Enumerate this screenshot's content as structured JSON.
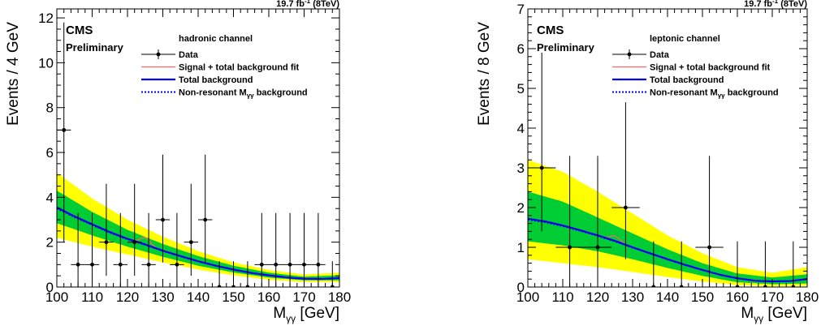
{
  "colors": {
    "band_2sigma": "#ffff00",
    "band_1sigma": "#00cc33",
    "signal_fit": "#ff6666",
    "total_background": "#0000ee",
    "nonresonant_background": "#0000ff",
    "data": "#000000"
  },
  "chart_data": [
    {
      "type": "scatter",
      "experiment": "CMS",
      "status": "Preliminary",
      "lumi_value": "19.7 fb",
      "lumi_exp": "-1",
      "lumi_energy": " (8TeV)",
      "channel": "hadronic channel",
      "ylabel": "Events / 4 GeV",
      "xlabel_main": "M",
      "xlabel_sub": "γγ",
      "xlabel_unit": " [GeV]",
      "xlim": [
        100,
        180
      ],
      "ylim": [
        0,
        12.4
      ],
      "xticks": [
        100,
        110,
        120,
        130,
        140,
        150,
        160,
        170,
        180
      ],
      "yticks": [
        0,
        2,
        4,
        6,
        8,
        10,
        12
      ],
      "legend_position": "top-right",
      "legend": [
        {
          "key": "data",
          "label": "Data"
        },
        {
          "key": "signal",
          "label": "Signal + total background fit"
        },
        {
          "key": "total",
          "label": "Total background"
        },
        {
          "key": "nonres",
          "label": "Non-resonant M",
          "sub": "γγ",
          "suffix": " background"
        }
      ],
      "data_points": [
        {
          "x": 102,
          "y": 7,
          "err": [
            5.0,
            4.8
          ],
          "xerr": 2
        },
        {
          "x": 106,
          "y": 1,
          "err": [
            1.0,
            2.3
          ],
          "xerr": 2
        },
        {
          "x": 110,
          "y": 1,
          "err": [
            1.0,
            2.3
          ],
          "xerr": 2
        },
        {
          "x": 114,
          "y": 2,
          "err": [
            1.5,
            2.6
          ],
          "xerr": 2
        },
        {
          "x": 118,
          "y": 1,
          "err": [
            1.0,
            2.3
          ],
          "xerr": 2
        },
        {
          "x": 122,
          "y": 2,
          "err": [
            1.5,
            2.6
          ],
          "xerr": 2
        },
        {
          "x": 126,
          "y": 1,
          "err": [
            1.0,
            2.3
          ],
          "xerr": 2
        },
        {
          "x": 130,
          "y": 3,
          "err": [
            1.9,
            2.9
          ],
          "xerr": 2
        },
        {
          "x": 134,
          "y": 1,
          "err": [
            1.0,
            2.3
          ],
          "xerr": 2
        },
        {
          "x": 138,
          "y": 2,
          "err": [
            1.5,
            2.6
          ],
          "xerr": 2
        },
        {
          "x": 142,
          "y": 3,
          "err": [
            1.9,
            2.9
          ],
          "xerr": 2
        },
        {
          "x": 146,
          "y": 0,
          "err": [
            0,
            1.15
          ],
          "xerr": 2
        },
        {
          "x": 150,
          "y": 0,
          "err": [
            0,
            1.15
          ],
          "xerr": 2
        },
        {
          "x": 154,
          "y": 0,
          "err": [
            0,
            1.15
          ],
          "xerr": 2
        },
        {
          "x": 158,
          "y": 1,
          "err": [
            1.0,
            2.3
          ],
          "xerr": 2
        },
        {
          "x": 162,
          "y": 1,
          "err": [
            1.0,
            2.3
          ],
          "xerr": 2
        },
        {
          "x": 166,
          "y": 1,
          "err": [
            1.0,
            2.3
          ],
          "xerr": 2
        },
        {
          "x": 170,
          "y": 1,
          "err": [
            1.0,
            2.3
          ],
          "xerr": 2
        },
        {
          "x": 174,
          "y": 1,
          "err": [
            1.0,
            2.3
          ],
          "xerr": 2
        },
        {
          "x": 178,
          "y": 0,
          "err": [
            0,
            1.15
          ],
          "xerr": 2
        }
      ],
      "background_curve": {
        "x": [
          100,
          105,
          110,
          115,
          120,
          125,
          130,
          135,
          140,
          145,
          150,
          155,
          160,
          165,
          170,
          175,
          180
        ],
        "y": [
          3.55,
          3.15,
          2.8,
          2.45,
          2.15,
          1.9,
          1.62,
          1.38,
          1.15,
          0.95,
          0.78,
          0.63,
          0.52,
          0.43,
          0.37,
          0.36,
          0.4
        ]
      },
      "band_1sigma": {
        "x": [
          100,
          110,
          120,
          130,
          140,
          150,
          160,
          170,
          180
        ],
        "lo": [
          2.85,
          2.3,
          1.8,
          1.35,
          0.95,
          0.65,
          0.42,
          0.3,
          0.3
        ],
        "hi": [
          4.3,
          3.35,
          2.55,
          1.92,
          1.38,
          0.95,
          0.64,
          0.46,
          0.52
        ]
      },
      "band_2sigma": {
        "x": [
          100,
          110,
          120,
          130,
          140,
          150,
          160,
          170,
          180
        ],
        "lo": [
          2.2,
          1.8,
          1.45,
          1.1,
          0.78,
          0.52,
          0.32,
          0.22,
          0.22
        ],
        "hi": [
          5.1,
          3.95,
          3.0,
          2.25,
          1.6,
          1.1,
          0.76,
          0.56,
          0.64
        ]
      },
      "signal_bump": {
        "mass": 125,
        "height": 0.3,
        "width": 1.4
      }
    },
    {
      "type": "scatter",
      "experiment": "CMS",
      "status": "Preliminary",
      "lumi_value": "19.7 fb",
      "lumi_exp": "-1",
      "lumi_energy": " (8TeV)",
      "channel": "leptonic channel",
      "ylabel": "Events / 8 GeV",
      "xlabel_main": "M",
      "xlabel_sub": "γγ",
      "xlabel_unit": " [GeV]",
      "xlim": [
        100,
        180
      ],
      "ylim": [
        0,
        7
      ],
      "xticks": [
        100,
        110,
        120,
        130,
        140,
        150,
        160,
        170,
        180
      ],
      "yticks": [
        0,
        1,
        2,
        3,
        4,
        5,
        6,
        7
      ],
      "legend_position": "top-right",
      "legend": [
        {
          "key": "data",
          "label": "Data"
        },
        {
          "key": "signal",
          "label": "Signal + total background fit"
        },
        {
          "key": "total",
          "label": "Total background"
        },
        {
          "key": "nonres",
          "label": "Non-resonant M",
          "sub": "γγ",
          "suffix": " background"
        }
      ],
      "data_points": [
        {
          "x": 104,
          "y": 3,
          "err": [
            1.6,
            2.9
          ],
          "xerr": 4
        },
        {
          "x": 112,
          "y": 1,
          "err": [
            1.0,
            2.3
          ],
          "xerr": 4
        },
        {
          "x": 120,
          "y": 1,
          "err": [
            1.0,
            2.3
          ],
          "xerr": 4
        },
        {
          "x": 128,
          "y": 2,
          "err": [
            1.3,
            2.65
          ],
          "xerr": 4
        },
        {
          "x": 136,
          "y": 0,
          "err": [
            0,
            1.15
          ],
          "xerr": 4
        },
        {
          "x": 144,
          "y": 0,
          "err": [
            0,
            1.15
          ],
          "xerr": 4
        },
        {
          "x": 152,
          "y": 1,
          "err": [
            1.0,
            2.3
          ],
          "xerr": 4
        },
        {
          "x": 160,
          "y": 0,
          "err": [
            0,
            1.15
          ],
          "xerr": 4
        },
        {
          "x": 168,
          "y": 0,
          "err": [
            0,
            1.15
          ],
          "xerr": 4
        },
        {
          "x": 176,
          "y": 0,
          "err": [
            0,
            1.15
          ],
          "xerr": 4
        }
      ],
      "background_curve": {
        "x": [
          100,
          105,
          110,
          115,
          120,
          125,
          130,
          135,
          140,
          145,
          150,
          155,
          160,
          165,
          170,
          175,
          180
        ],
        "y": [
          1.72,
          1.65,
          1.55,
          1.43,
          1.3,
          1.16,
          1.0,
          0.85,
          0.7,
          0.56,
          0.43,
          0.31,
          0.22,
          0.16,
          0.14,
          0.15,
          0.2
        ]
      },
      "band_1sigma": {
        "x": [
          100,
          110,
          120,
          130,
          140,
          150,
          160,
          170,
          180
        ],
        "lo": [
          1.15,
          1.05,
          0.9,
          0.7,
          0.48,
          0.28,
          0.12,
          0.07,
          0.09
        ],
        "hi": [
          2.4,
          2.15,
          1.75,
          1.35,
          0.95,
          0.6,
          0.34,
          0.24,
          0.32
        ]
      },
      "band_2sigma": {
        "x": [
          100,
          110,
          120,
          130,
          140,
          150,
          160,
          170,
          180
        ],
        "lo": [
          0.7,
          0.6,
          0.5,
          0.38,
          0.25,
          0.14,
          0.05,
          0.02,
          0.03
        ],
        "hi": [
          3.2,
          2.9,
          2.4,
          1.85,
          1.3,
          0.85,
          0.5,
          0.36,
          0.5
        ]
      },
      "signal_bump": {
        "mass": 125,
        "height": 0.12,
        "width": 1.4
      }
    }
  ]
}
